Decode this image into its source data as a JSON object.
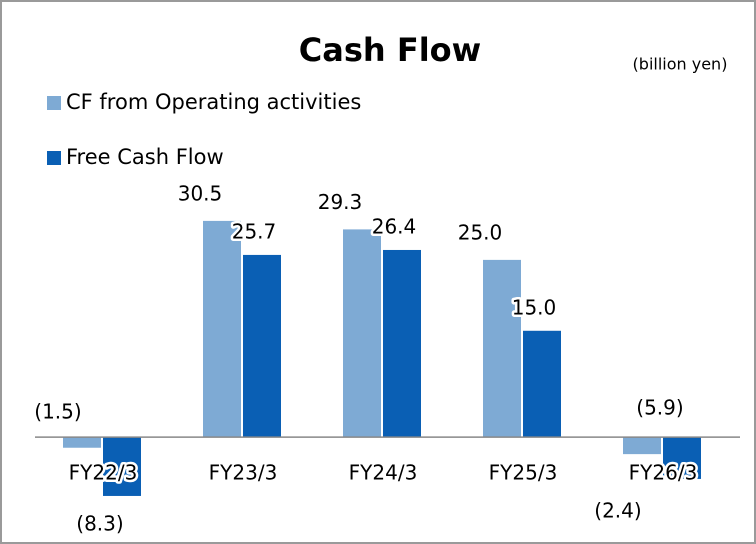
{
  "chart_data": {
    "type": "bar",
    "title": "Cash Flow",
    "subtitle": "(billion yen)",
    "categories": [
      "FY22/3",
      "FY23/3",
      "FY24/3",
      "FY25/3",
      "FY26/3"
    ],
    "series": [
      {
        "name": "CF from Operating activities",
        "color": "#7eaad4",
        "values": [
          -1.5,
          30.5,
          29.3,
          25.0,
          -2.4
        ],
        "value_labels": [
          "(1.5)",
          "30.5",
          "29.3",
          "25.0",
          "(2.4)"
        ]
      },
      {
        "name": "Free Cash Flow",
        "color": "#0a5fb4",
        "values": [
          -8.3,
          25.7,
          26.4,
          15.0,
          -5.9
        ],
        "value_labels": [
          "(8.3)",
          "25.7",
          "26.4",
          "15.0",
          "(5.9)"
        ]
      }
    ],
    "ylim": [
      -10,
      35
    ]
  }
}
